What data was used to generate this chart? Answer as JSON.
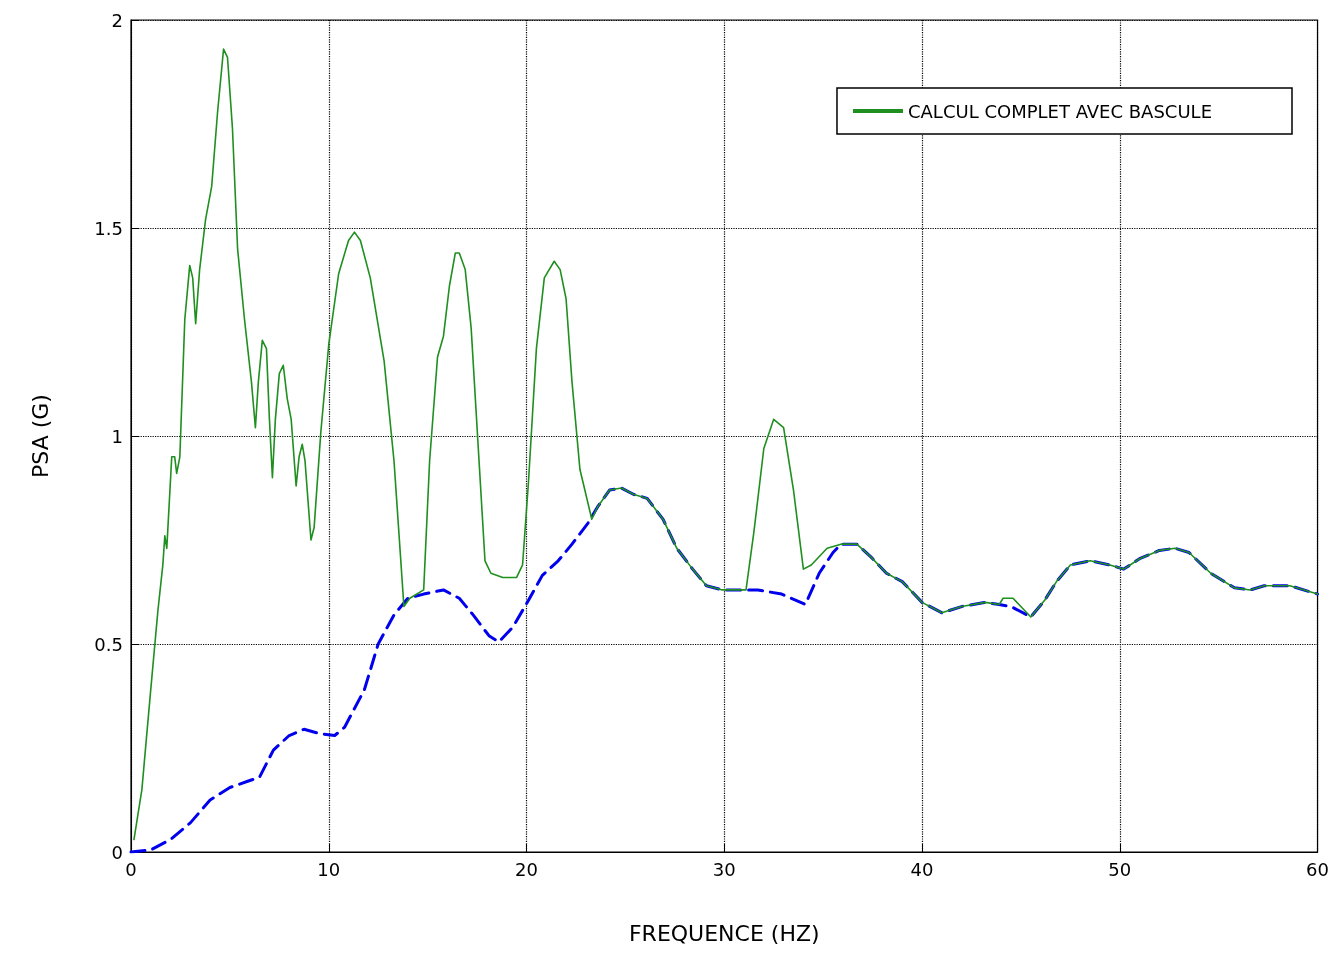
{
  "chart_data": {
    "type": "line",
    "xlabel": "FREQUENCE (HZ)",
    "ylabel": "PSA (G)",
    "xlim": [
      0,
      60
    ],
    "ylim": [
      0,
      2
    ],
    "xticks": [
      0,
      10,
      20,
      30,
      40,
      50,
      60
    ],
    "yticks": [
      0,
      0.5,
      1,
      1.5,
      2
    ],
    "grid": true,
    "legend": "top right",
    "marker": "none",
    "series": [
      {
        "color": "#0000ee",
        "line_style": "dashed",
        "x": [
          0,
          1,
          2,
          3,
          4,
          5,
          5.9,
          6.5,
          7.2,
          8,
          8.75,
          9.5,
          10.3,
          10.8,
          11.8,
          12.5,
          13.3,
          14,
          14.8,
          15.8,
          16.6,
          17.3,
          18.1,
          18.6,
          19.3,
          20.1,
          20.8,
          21.6,
          22.3,
          23.1,
          23.6,
          24.2,
          24.8,
          25.4,
          26.1,
          26.9,
          27.6,
          28.4,
          29.1,
          29.9,
          31.1,
          31.7,
          32.9,
          34.1,
          34.8,
          35.5,
          35.9,
          36.7,
          37.4,
          38.2,
          39,
          40,
          41,
          42,
          43.2,
          43.9,
          44.5,
          45.5,
          46.2,
          46.8,
          47.5,
          48.5,
          49.5,
          50.2,
          51,
          52,
          52.8,
          53.5,
          54.6,
          55.8,
          56.6,
          57.3,
          58.6,
          60
        ],
        "values": [
          0,
          0.005,
          0.03,
          0.07,
          0.125,
          0.155,
          0.17,
          0.18,
          0.245,
          0.28,
          0.295,
          0.285,
          0.28,
          0.3,
          0.39,
          0.5,
          0.57,
          0.61,
          0.62,
          0.63,
          0.61,
          0.57,
          0.52,
          0.505,
          0.54,
          0.605,
          0.665,
          0.7,
          0.74,
          0.79,
          0.83,
          0.87,
          0.875,
          0.86,
          0.85,
          0.8,
          0.73,
          0.68,
          0.64,
          0.63,
          0.63,
          0.63,
          0.62,
          0.595,
          0.67,
          0.72,
          0.74,
          0.74,
          0.71,
          0.67,
          0.65,
          0.6,
          0.575,
          0.59,
          0.6,
          0.595,
          0.59,
          0.565,
          0.605,
          0.65,
          0.69,
          0.7,
          0.69,
          0.68,
          0.705,
          0.725,
          0.73,
          0.72,
          0.67,
          0.635,
          0.63,
          0.64,
          0.64,
          0.62
        ]
      },
      {
        "name": "CALCUL COMPLET AVEC BASCULE",
        "color": "#1f8f1f",
        "line_style": "solid",
        "x": [
          0.15,
          0.55,
          0.96,
          1.36,
          1.61,
          1.71,
          1.81,
          2.06,
          2.21,
          2.31,
          2.47,
          2.72,
          2.97,
          3.12,
          3.27,
          3.47,
          3.77,
          4.08,
          4.38,
          4.68,
          4.88,
          5.13,
          5.39,
          5.74,
          6.09,
          6.29,
          6.44,
          6.64,
          6.85,
          7,
          7.15,
          7.3,
          7.5,
          7.7,
          7.9,
          8.1,
          8.35,
          8.5,
          8.66,
          8.8,
          9.1,
          9.26,
          9.6,
          10,
          10.5,
          11,
          11.3,
          11.6,
          12.1,
          12.8,
          13.3,
          13.8,
          14.1,
          14.8,
          15.1,
          15.5,
          15.8,
          16.1,
          16.4,
          16.6,
          16.9,
          17.2,
          17.6,
          17.9,
          18.2,
          18.8,
          19.5,
          19.8,
          20.1,
          20.5,
          20.9,
          21.4,
          21.7,
          22,
          22.3,
          22.7,
          23.3,
          23.6,
          24.2,
          24.8,
          25.4,
          26.1,
          26.9,
          27.6,
          28.4,
          29.1,
          29.9,
          31.1,
          31.5,
          32,
          32.5,
          33,
          33.5,
          34,
          34.4,
          35.2,
          35.9,
          36.7,
          37.4,
          38.2,
          39,
          40,
          41,
          42,
          43.2,
          43.9,
          44.1,
          44.6,
          45.5,
          46.2,
          46.8,
          47.5,
          48.5,
          49.5,
          50.2,
          51,
          52,
          52.8,
          53.5,
          54.6,
          55.8,
          56.6,
          57.3,
          58.6,
          60
        ],
        "values": [
          0.03,
          0.15,
          0.37,
          0.58,
          0.69,
          0.76,
          0.73,
          0.95,
          0.95,
          0.91,
          0.95,
          1.28,
          1.41,
          1.38,
          1.27,
          1.4,
          1.52,
          1.6,
          1.78,
          1.93,
          1.91,
          1.74,
          1.45,
          1.28,
          1.13,
          1.02,
          1.13,
          1.23,
          1.21,
          1.04,
          0.9,
          1.04,
          1.15,
          1.17,
          1.09,
          1.04,
          0.88,
          0.95,
          0.98,
          0.94,
          0.75,
          0.78,
          1.01,
          1.22,
          1.39,
          1.47,
          1.49,
          1.47,
          1.38,
          1.18,
          0.94,
          0.59,
          0.61,
          0.63,
          0.94,
          1.19,
          1.24,
          1.36,
          1.44,
          1.44,
          1.4,
          1.26,
          0.94,
          0.7,
          0.67,
          0.66,
          0.66,
          0.69,
          0.89,
          1.21,
          1.38,
          1.42,
          1.4,
          1.33,
          1.13,
          0.92,
          0.8,
          0.83,
          0.87,
          0.875,
          0.86,
          0.85,
          0.8,
          0.73,
          0.68,
          0.64,
          0.63,
          0.63,
          0.77,
          0.97,
          1.04,
          1.02,
          0.87,
          0.68,
          0.69,
          0.73,
          0.74,
          0.74,
          0.71,
          0.67,
          0.65,
          0.6,
          0.575,
          0.59,
          0.6,
          0.595,
          0.61,
          0.61,
          0.565,
          0.605,
          0.65,
          0.69,
          0.7,
          0.69,
          0.68,
          0.705,
          0.725,
          0.73,
          0.72,
          0.67,
          0.635,
          0.63,
          0.64,
          0.64,
          0.62
        ]
      }
    ]
  }
}
